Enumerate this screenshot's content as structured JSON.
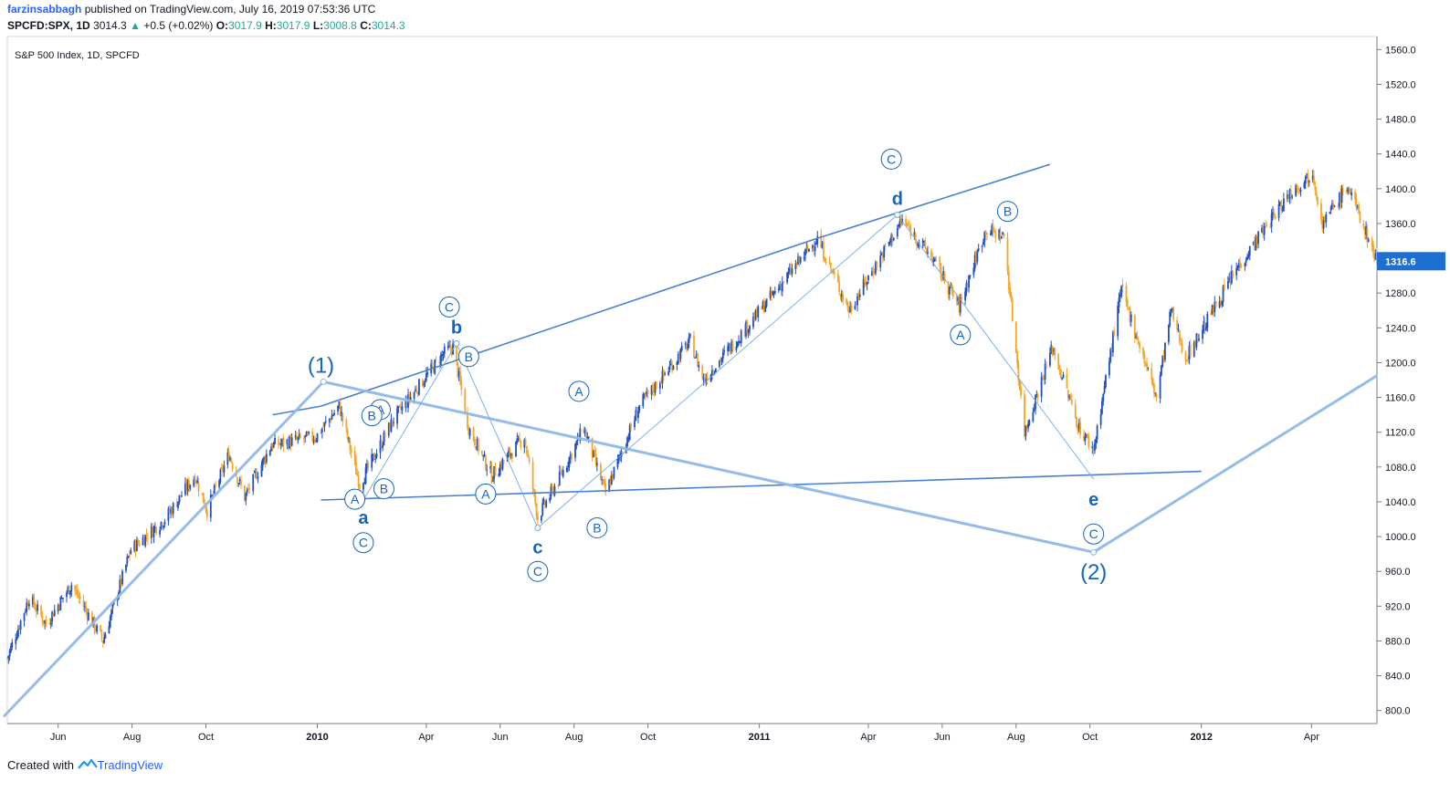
{
  "header": {
    "author": "farzinsabbagh",
    "published_text": "published on TradingView.com, July 16, 2019 07:53:36 UTC",
    "symbol": "SPCFD:SPX, 1D",
    "last": "3014.3",
    "change": "+0.5 (+0.02%)",
    "o_label": "O:",
    "o_value": "3017.9",
    "h_label": "H:",
    "h_value": "3017.9",
    "l_label": "L:",
    "l_value": "3008.8",
    "c_label": "C:",
    "c_value": "3014.3"
  },
  "footer": {
    "created_with": "Created with",
    "brand": "TradingView"
  },
  "colors": {
    "up": "#1f4fc4",
    "down": "#f5a623",
    "trend": "#4a7fd6",
    "wave": "#8fb8e8",
    "label": "#1565c0",
    "price_tag": "#1d6fd1"
  },
  "chart_data": {
    "type": "candlestick",
    "title": "S&P 500 Index, 1D, SPCFD",
    "y_ticks": [
      800,
      840,
      880,
      920,
      960,
      1000,
      1040,
      1080,
      1120,
      1160,
      1200,
      1240,
      1280,
      1320,
      1360,
      1400,
      1440,
      1480,
      1520,
      1560
    ],
    "ylim": [
      785,
      1575
    ],
    "x_ticks": [
      {
        "label": "Jun",
        "date": "2009-06-01",
        "bold": false
      },
      {
        "label": "Aug",
        "date": "2009-08-01",
        "bold": false
      },
      {
        "label": "Oct",
        "date": "2009-10-01",
        "bold": false
      },
      {
        "label": "2010",
        "date": "2010-01-01",
        "bold": true
      },
      {
        "label": "Apr",
        "date": "2010-04-01",
        "bold": false
      },
      {
        "label": "Jun",
        "date": "2010-06-01",
        "bold": false
      },
      {
        "label": "Aug",
        "date": "2010-08-01",
        "bold": false
      },
      {
        "label": "Oct",
        "date": "2010-10-01",
        "bold": false
      },
      {
        "label": "2011",
        "date": "2011-01-01",
        "bold": true
      },
      {
        "label": "Apr",
        "date": "2011-04-01",
        "bold": false
      },
      {
        "label": "Jun",
        "date": "2011-06-01",
        "bold": false
      },
      {
        "label": "Aug",
        "date": "2011-08-01",
        "bold": false
      },
      {
        "label": "Oct",
        "date": "2011-10-01",
        "bold": false
      },
      {
        "label": "2012",
        "date": "2012-01-01",
        "bold": true
      },
      {
        "label": "Apr",
        "date": "2012-04-01",
        "bold": false
      }
    ],
    "date_range": [
      "2009-04-20",
      "2012-05-25"
    ],
    "last_price": "1316.6",
    "price_path": [
      [
        "2009-04-20",
        860
      ],
      [
        "2009-05-08",
        930
      ],
      [
        "2009-05-22",
        900
      ],
      [
        "2009-06-12",
        945
      ],
      [
        "2009-07-08",
        880
      ],
      [
        "2009-07-31",
        985
      ],
      [
        "2009-08-28",
        1020
      ],
      [
        "2009-09-22",
        1070
      ],
      [
        "2009-10-02",
        1030
      ],
      [
        "2009-10-20",
        1095
      ],
      [
        "2009-11-02",
        1045
      ],
      [
        "2009-11-24",
        1105
      ],
      [
        "2009-12-31",
        1115
      ],
      [
        "2010-01-19",
        1150
      ],
      [
        "2010-02-05",
        1060
      ],
      [
        "2010-03-05",
        1135
      ],
      [
        "2010-04-15",
        1210
      ],
      [
        "2010-04-23",
        1218
      ],
      [
        "2010-05-06",
        1125
      ],
      [
        "2010-05-25",
        1070
      ],
      [
        "2010-06-21",
        1115
      ],
      [
        "2010-07-02",
        1022
      ],
      [
        "2010-07-21",
        1070
      ],
      [
        "2010-08-09",
        1125
      ],
      [
        "2010-08-27",
        1050
      ],
      [
        "2010-09-24",
        1150
      ],
      [
        "2010-11-05",
        1225
      ],
      [
        "2010-11-16",
        1180
      ],
      [
        "2010-12-31",
        1257
      ],
      [
        "2011-02-18",
        1343
      ],
      [
        "2011-03-16",
        1260
      ],
      [
        "2011-04-29",
        1364
      ],
      [
        "2011-05-24",
        1320
      ],
      [
        "2011-06-15",
        1265
      ],
      [
        "2011-07-07",
        1353
      ],
      [
        "2011-07-22",
        1345
      ],
      [
        "2011-08-08",
        1120
      ],
      [
        "2011-08-31",
        1218
      ],
      [
        "2011-09-22",
        1125
      ],
      [
        "2011-10-04",
        1100
      ],
      [
        "2011-10-27",
        1284
      ],
      [
        "2011-11-25",
        1160
      ],
      [
        "2011-12-07",
        1260
      ],
      [
        "2011-12-19",
        1205
      ],
      [
        "2012-01-31",
        1310
      ],
      [
        "2012-03-14",
        1395
      ],
      [
        "2012-04-02",
        1419
      ],
      [
        "2012-04-10",
        1360
      ],
      [
        "2012-05-01",
        1403
      ],
      [
        "2012-05-25",
        1317
      ]
    ],
    "trendlines": [
      {
        "kind": "solid",
        "points": [
          [
            "2009-11-25",
            1140
          ],
          [
            "2010-01-04",
            1150
          ],
          [
            "2011-02-18",
            1343
          ],
          [
            "2011-08-29",
            1428
          ]
        ]
      },
      {
        "kind": "solid",
        "points": [
          [
            "2010-01-04",
            1042
          ],
          [
            "2012-01-01",
            1075
          ]
        ]
      },
      {
        "kind": "thick",
        "points": [
          [
            "2009-04-17",
            793
          ],
          [
            "2010-01-06",
            1178
          ],
          [
            "2011-10-04",
            982
          ],
          [
            "2012-05-25",
            1185
          ]
        ]
      },
      {
        "kind": "thin",
        "points": [
          [
            "2010-02-08",
            1042
          ],
          [
            "2010-04-26",
            1222
          ],
          [
            "2010-07-02",
            1010
          ],
          [
            "2011-04-25",
            1370
          ],
          [
            "2011-10-04",
            1066
          ]
        ]
      }
    ],
    "annotations": [
      {
        "text": "(1)",
        "kind": "paren",
        "date": "2010-01-04",
        "price": 1198
      },
      {
        "text": "(2)",
        "kind": "paren",
        "date": "2011-10-04",
        "price": 960
      },
      {
        "text": "a",
        "kind": "letter",
        "date": "2010-02-08",
        "price": 1022
      },
      {
        "text": "b",
        "kind": "letter",
        "date": "2010-04-26",
        "price": 1241
      },
      {
        "text": "c",
        "kind": "letter",
        "date": "2010-07-02",
        "price": 988
      },
      {
        "text": "d",
        "kind": "letter",
        "date": "2011-04-25",
        "price": 1389
      },
      {
        "text": "e",
        "kind": "letter",
        "date": "2011-10-04",
        "price": 1043
      },
      {
        "text": "C",
        "kind": "circle",
        "date": "2010-02-08",
        "price": 993
      },
      {
        "text": "C",
        "kind": "circle",
        "date": "2010-04-20",
        "price": 1264
      },
      {
        "text": "C",
        "kind": "circle",
        "date": "2010-07-02",
        "price": 960
      },
      {
        "text": "C",
        "kind": "circle",
        "date": "2011-04-20",
        "price": 1434
      },
      {
        "text": "C",
        "kind": "circle",
        "date": "2011-10-04",
        "price": 1003
      },
      {
        "text": "A",
        "kind": "circle",
        "date": "2010-02-01",
        "price": 1043
      },
      {
        "text": "A",
        "kind": "circle",
        "date": "2010-02-22",
        "price": 1146
      },
      {
        "text": "A",
        "kind": "circle",
        "date": "2010-05-20",
        "price": 1049
      },
      {
        "text": "A",
        "kind": "circle",
        "date": "2010-08-05",
        "price": 1167
      },
      {
        "text": "A",
        "kind": "circle",
        "date": "2011-06-16",
        "price": 1232
      },
      {
        "text": "B",
        "kind": "circle",
        "date": "2010-02-15",
        "price": 1139
      },
      {
        "text": "B",
        "kind": "circle",
        "date": "2010-02-25",
        "price": 1055
      },
      {
        "text": "B",
        "kind": "circle",
        "date": "2010-05-06",
        "price": 1207
      },
      {
        "text": "B",
        "kind": "circle",
        "date": "2010-08-20",
        "price": 1010
      },
      {
        "text": "B",
        "kind": "circle",
        "date": "2011-07-25",
        "price": 1374
      }
    ]
  }
}
